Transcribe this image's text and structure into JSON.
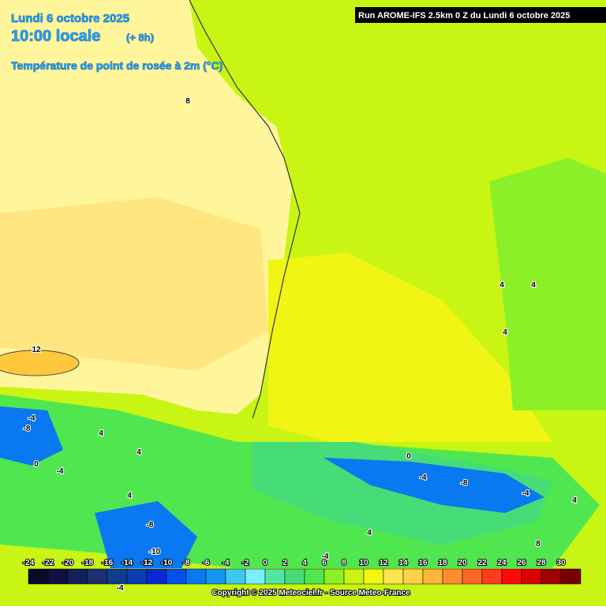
{
  "header": {
    "date": "Lundi 6 octobre 2025",
    "time": "10:00 locale",
    "offset": "(+ 8h)",
    "title": "Température de point de rosée à 2m (°C)",
    "run": "Run AROME-IFS 2.5km 0 Z du Lundi 6 octobre 2025"
  },
  "scale": {
    "labels": [
      "-24",
      "-22",
      "-20",
      "-18",
      "-16",
      "-14",
      "-12",
      "-10",
      "-8",
      "-6",
      "-4",
      "-2",
      "0",
      "2",
      "4",
      "6",
      "8",
      "10",
      "12",
      "14",
      "16",
      "18",
      "20",
      "22",
      "24",
      "26",
      "28",
      "30"
    ],
    "colors": [
      "#0a0a2a",
      "#101040",
      "#14205a",
      "#1a3070",
      "#103c8c",
      "#0a3cb4",
      "#0a28d2",
      "#0050f0",
      "#0a78f0",
      "#1496f0",
      "#3cc8f0",
      "#78f0ff",
      "#50e6a0",
      "#46dc78",
      "#50e650",
      "#8cf028",
      "#c8f514",
      "#f0f514",
      "#ffe650",
      "#ffd24a",
      "#ffb43c",
      "#ff8c32",
      "#ff6428",
      "#ff3c1e",
      "#ff0a0a",
      "#dc0000",
      "#a00000",
      "#780000"
    ]
  },
  "map_labels": [
    "8",
    "12",
    "-4",
    "-8",
    "4",
    "4",
    "0",
    "-4",
    "4",
    "-4",
    "-8",
    "0",
    "-4",
    "-8",
    "-4",
    "4",
    "4",
    "4",
    "4",
    "8",
    "4",
    "-10",
    "-4"
  ],
  "footer": {
    "copyright": "Copyright © 2025 Meteociel.fr - Source Meteo-France"
  }
}
